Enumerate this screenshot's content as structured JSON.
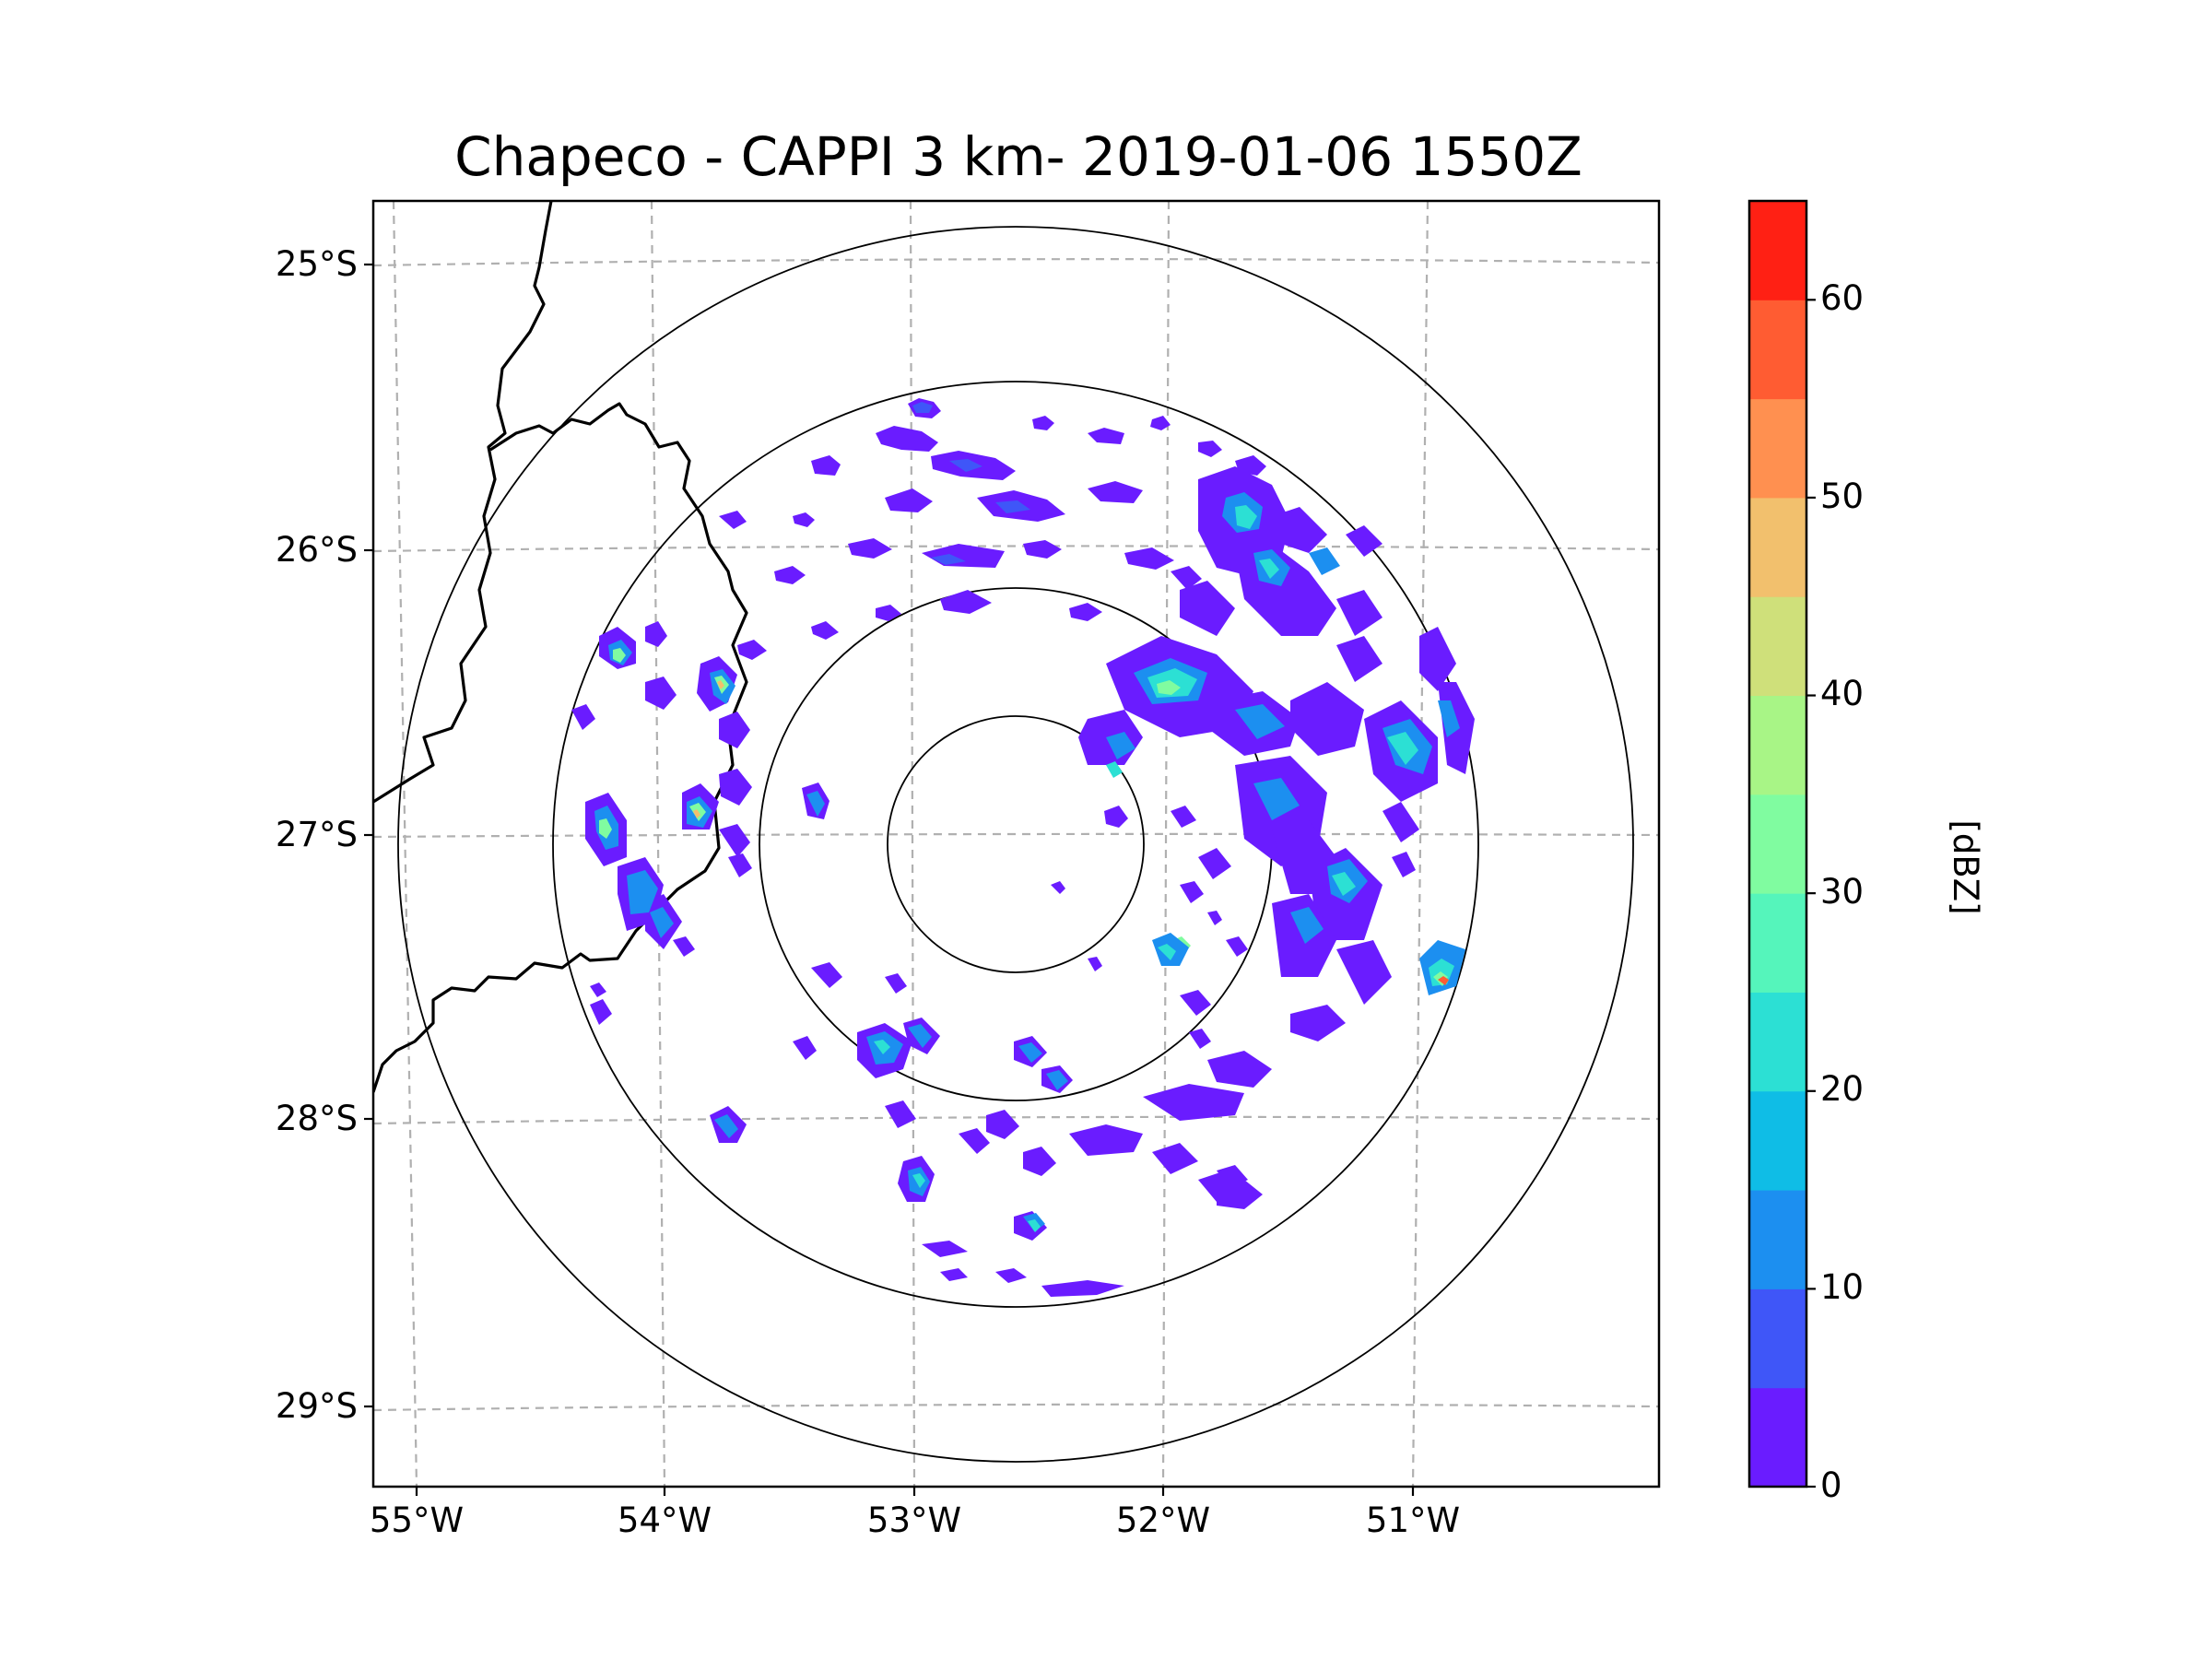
{
  "title": "Chapeco - CAPPI 3 km- 2019-01-06 1550Z",
  "map": {
    "lat_labels": [
      "25°S",
      "26°S",
      "27°S",
      "28°S",
      "29°S"
    ],
    "lon_labels": [
      "55°W",
      "54°W",
      "53°W",
      "52°W",
      "51°W"
    ],
    "radar_site": "Chapeco",
    "range_rings_count": 4,
    "gridline_color": "#b0b0b0",
    "border_color": "#000000"
  },
  "colorbar": {
    "unit": "[dBZ]",
    "tick_labels": [
      "0",
      "10",
      "20",
      "30",
      "40",
      "50",
      "60"
    ],
    "min": 0,
    "max": 65,
    "step": 5,
    "colors": [
      "#6a1cff",
      "#3f56f8",
      "#1c8ff0",
      "#0fbde6",
      "#2ce0d4",
      "#55f5bb",
      "#80fca0",
      "#a8f586",
      "#cfe07a",
      "#f2c06d",
      "#ff9050",
      "#ff5c32",
      "#ff2014"
    ]
  }
}
